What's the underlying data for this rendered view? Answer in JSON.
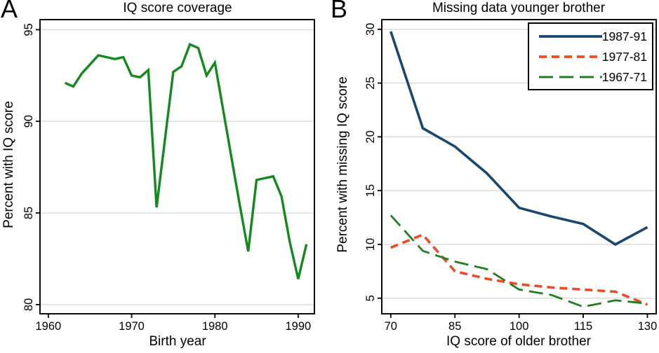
{
  "figure": {
    "panels": [
      {
        "letter": "A",
        "title": "IQ score coverage",
        "xlabel": "Birth year",
        "ylabel": "Percent with IQ score"
      },
      {
        "letter": "B",
        "title": "Missing data younger brother",
        "xlabel": "IQ score of older brother",
        "ylabel": "Percent with missing IQ score"
      }
    ]
  },
  "chart_data": [
    {
      "panel": "A",
      "type": "line",
      "title": "IQ score coverage",
      "xlabel": "Birth year",
      "ylabel": "Percent with IQ score",
      "xlim": [
        1959,
        1991.95
      ],
      "ylim": [
        79.5,
        95.55
      ],
      "xticks": [
        1960,
        1970,
        1980,
        1990
      ],
      "yticks": [
        80,
        85,
        90,
        95
      ],
      "grid": "horizontal",
      "legend": false,
      "series": [
        {
          "name": "Percent with IQ score",
          "color": "#128a1e",
          "style": "solid",
          "width": 3.4,
          "x": [
            1962,
            1963,
            1964,
            1965,
            1966,
            1967,
            1968,
            1969,
            1970,
            1971,
            1972,
            1973,
            1974,
            1975,
            1976,
            1977,
            1978,
            1979,
            1980,
            1981,
            1982,
            1983,
            1984,
            1985,
            1986,
            1987,
            1988,
            1989,
            1990,
            1991
          ],
          "y": [
            92.1,
            91.9,
            92.6,
            93.1,
            93.6,
            93.5,
            93.4,
            93.5,
            92.5,
            92.4,
            92.8,
            85.3,
            89.0,
            92.7,
            93.0,
            94.2,
            94.0,
            92.5,
            93.2,
            90.6,
            88.0,
            85.4,
            82.9,
            86.8,
            86.9,
            87.0,
            85.9,
            83.4,
            81.4,
            83.3
          ]
        }
      ]
    },
    {
      "panel": "B",
      "type": "line",
      "title": "Missing data younger brother",
      "xlabel": "IQ score of older brother",
      "ylabel": "Percent with missing IQ score",
      "xlim": [
        67.9,
        132.05
      ],
      "ylim": [
        3.55,
        30.9
      ],
      "xticks": [
        70,
        85,
        100,
        115,
        130
      ],
      "yticks": [
        5,
        10,
        15,
        20,
        25,
        30
      ],
      "grid": "horizontal",
      "legend": true,
      "legend_position": "top-right",
      "series": [
        {
          "name": "1987-91",
          "color": "#1a476f",
          "style": "solid",
          "width": 3.6,
          "x": [
            70,
            77.5,
            85,
            92.5,
            100,
            107.5,
            115,
            122.5,
            130
          ],
          "y": [
            29.8,
            20.8,
            19.1,
            16.6,
            13.4,
            12.6,
            11.9,
            10.0,
            11.6
          ]
        },
        {
          "name": "1977-81",
          "color": "#ee4a23",
          "style": "dashed",
          "width": 3.6,
          "x": [
            70,
            77.5,
            85,
            92.5,
            100,
            107.5,
            115,
            122.5,
            130
          ],
          "y": [
            9.7,
            10.9,
            7.5,
            6.8,
            6.3,
            6.0,
            5.8,
            5.6,
            4.4
          ]
        },
        {
          "name": "1967-71",
          "color": "#1f7d22",
          "style": "long-dash",
          "width": 2.8,
          "x": [
            70,
            77.5,
            85,
            92.5,
            100,
            107.5,
            115,
            122.5,
            130
          ],
          "y": [
            12.7,
            9.4,
            8.4,
            7.7,
            5.8,
            5.3,
            4.2,
            4.8,
            4.5
          ]
        }
      ]
    }
  ],
  "style": {
    "grid_color": "#dadada",
    "frame_color": "#000000",
    "background": "#ffffff"
  }
}
